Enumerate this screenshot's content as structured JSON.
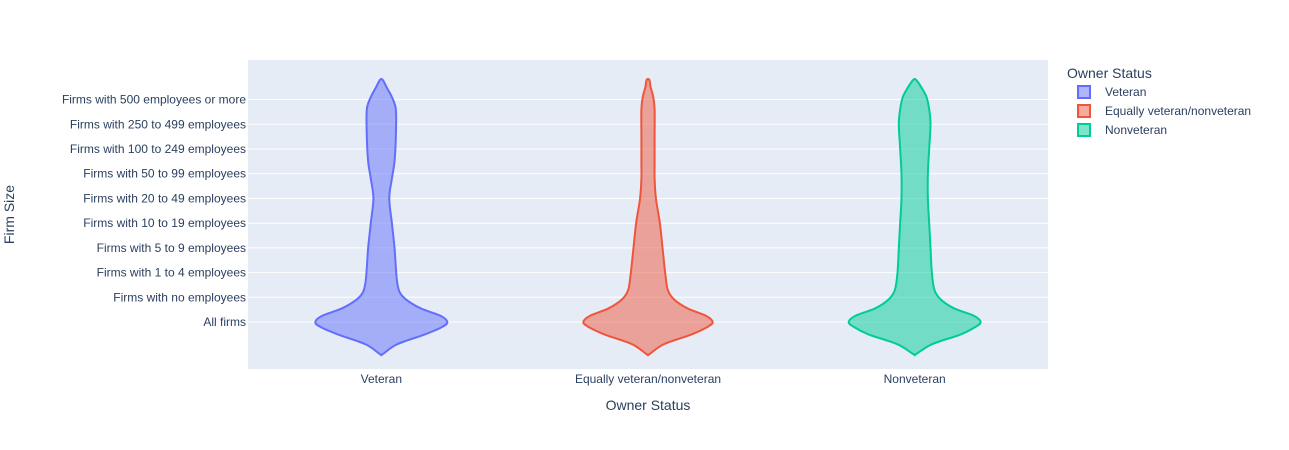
{
  "chart_data": {
    "type": "violin",
    "xlabel": "Owner Status",
    "ylabel": "Firm Size",
    "categories": [
      "All firms",
      "Firms with no employees",
      "Firms with 1 to 4 employees",
      "Firms with 5 to 9 employees",
      "Firms with 10 to 19 employees",
      "Firms with 20 to 49 employees",
      "Firms with 50 to 99 employees",
      "Firms with 100 to 249 employees",
      "Firms with 250 to 499 employees",
      "Firms with 500 employees or more"
    ],
    "x_categories": [
      "Veteran",
      "Equally veteran/nonveteran",
      "Nonveteran"
    ],
    "legend": {
      "title": "Owner Status",
      "placement": "top-right",
      "items": [
        "Veteran",
        "Equally veteran/nonveteran",
        "Nonveteran"
      ]
    },
    "series": [
      {
        "name": "Veteran",
        "color": "#636efa",
        "range": [
          -1.3,
          9.8
        ],
        "density": [
          [
            -1.3,
            0.01
          ],
          [
            -0.9,
            0.12
          ],
          [
            -0.5,
            0.33
          ],
          [
            -0.2,
            0.46
          ],
          [
            0.0,
            0.5
          ],
          [
            0.25,
            0.45
          ],
          [
            0.55,
            0.3
          ],
          [
            0.9,
            0.19
          ],
          [
            1.2,
            0.14
          ],
          [
            1.6,
            0.12
          ],
          [
            2.2,
            0.11
          ],
          [
            3.0,
            0.1
          ],
          [
            4.0,
            0.08
          ],
          [
            5.0,
            0.06
          ],
          [
            5.8,
            0.08
          ],
          [
            6.5,
            0.1
          ],
          [
            7.5,
            0.11
          ],
          [
            8.6,
            0.11
          ],
          [
            9.1,
            0.08
          ],
          [
            9.5,
            0.04
          ],
          [
            9.8,
            0.01
          ]
        ]
      },
      {
        "name": "Equally veteran/nonveteran",
        "color": "#ef553b",
        "range": [
          -1.3,
          9.8
        ],
        "density": [
          [
            -1.3,
            0.01
          ],
          [
            -0.9,
            0.12
          ],
          [
            -0.5,
            0.33
          ],
          [
            -0.2,
            0.45
          ],
          [
            0.0,
            0.49
          ],
          [
            0.25,
            0.44
          ],
          [
            0.55,
            0.3
          ],
          [
            0.9,
            0.2
          ],
          [
            1.3,
            0.15
          ],
          [
            2.0,
            0.13
          ],
          [
            3.0,
            0.11
          ],
          [
            4.0,
            0.09
          ],
          [
            5.0,
            0.06
          ],
          [
            5.8,
            0.05
          ],
          [
            6.5,
            0.05
          ],
          [
            7.5,
            0.05
          ],
          [
            8.6,
            0.05
          ],
          [
            9.1,
            0.04
          ],
          [
            9.5,
            0.02
          ],
          [
            9.8,
            0.01
          ]
        ]
      },
      {
        "name": "Nonveteran",
        "color": "#00cc96",
        "range": [
          -1.3,
          9.8
        ],
        "density": [
          [
            -1.3,
            0.01
          ],
          [
            -0.9,
            0.13
          ],
          [
            -0.5,
            0.35
          ],
          [
            -0.2,
            0.46
          ],
          [
            0.0,
            0.5
          ],
          [
            0.25,
            0.45
          ],
          [
            0.55,
            0.3
          ],
          [
            0.9,
            0.2
          ],
          [
            1.3,
            0.15
          ],
          [
            2.0,
            0.13
          ],
          [
            3.0,
            0.12
          ],
          [
            4.0,
            0.11
          ],
          [
            5.0,
            0.1
          ],
          [
            6.0,
            0.1
          ],
          [
            7.0,
            0.11
          ],
          [
            8.0,
            0.12
          ],
          [
            8.6,
            0.11
          ],
          [
            9.1,
            0.09
          ],
          [
            9.5,
            0.05
          ],
          [
            9.8,
            0.01
          ]
        ]
      }
    ]
  }
}
